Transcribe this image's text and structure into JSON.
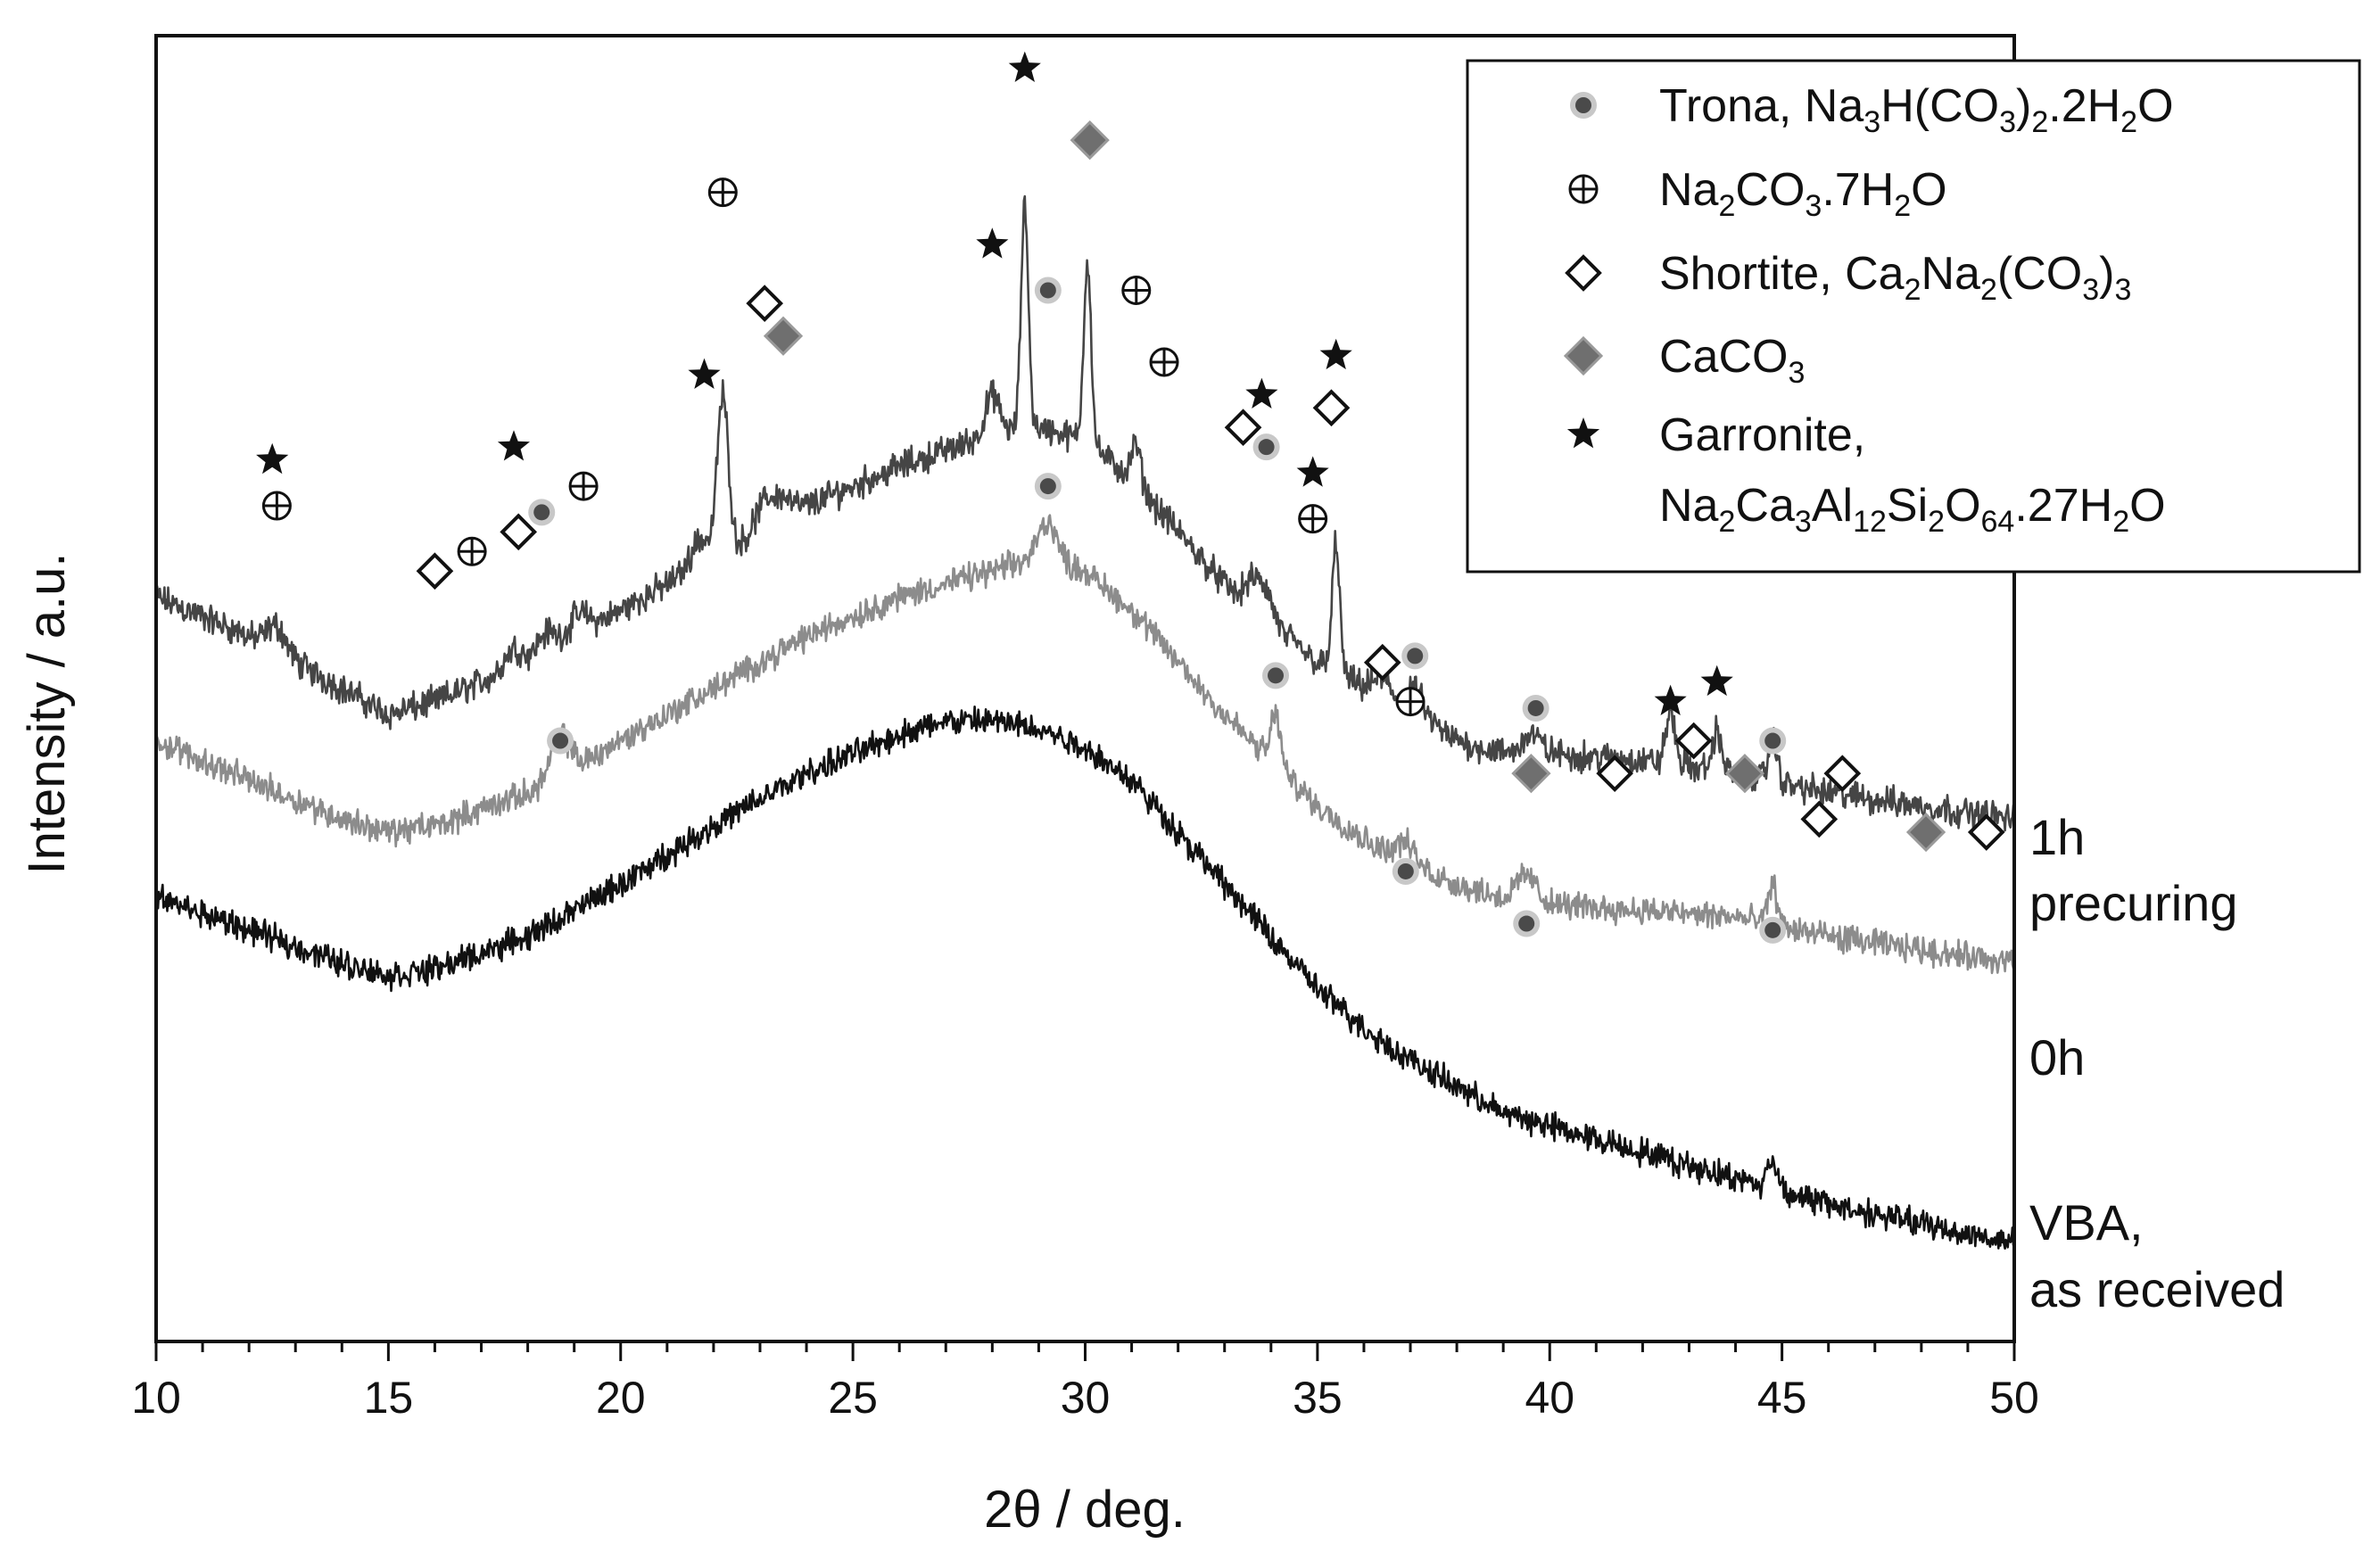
{
  "chart_data": {
    "type": "line",
    "title": "",
    "xlabel": "2θ / deg.",
    "ylabel": "Intensity / a.u.",
    "xlim": [
      10,
      50
    ],
    "ylim": [
      0,
      100
    ],
    "xticks": [
      10,
      15,
      20,
      25,
      30,
      35,
      40,
      45,
      50
    ],
    "xtick_labels": [
      "10",
      "15",
      "20",
      "25",
      "30",
      "35",
      "40",
      "45",
      "50"
    ],
    "yticks_shown": false,
    "legend_position": "top-right",
    "legend": [
      {
        "marker": "circle-gray",
        "label": "Trona, Na3H(CO3)2.2H2O",
        "parts": [
          [
            "Trona, Na",
            ""
          ],
          [
            "3",
            "sub"
          ],
          [
            "H(CO",
            ""
          ],
          [
            "3",
            "sub"
          ],
          [
            ")",
            ""
          ],
          [
            "2",
            "sub"
          ],
          [
            ".2H",
            ""
          ],
          [
            "2",
            "sub"
          ],
          [
            "O",
            ""
          ]
        ]
      },
      {
        "marker": "circle-plus",
        "label": "Na2CO3.7H2O",
        "parts": [
          [
            "Na",
            ""
          ],
          [
            "2",
            "sub"
          ],
          [
            "CO",
            ""
          ],
          [
            "3",
            "sub"
          ],
          [
            ".7H",
            ""
          ],
          [
            "2",
            "sub"
          ],
          [
            "O",
            ""
          ]
        ]
      },
      {
        "marker": "diamond-open",
        "label": "Shortite, Ca2Na2(CO3)3",
        "parts": [
          [
            "Shortite, Ca",
            ""
          ],
          [
            "2",
            "sub"
          ],
          [
            "Na",
            ""
          ],
          [
            "2",
            "sub"
          ],
          [
            "(CO",
            ""
          ],
          [
            "3",
            "sub"
          ],
          [
            ")",
            ""
          ],
          [
            "3",
            "sub"
          ]
        ]
      },
      {
        "marker": "diamond-gray",
        "label": "CaCO3",
        "parts": [
          [
            "CaCO",
            ""
          ],
          [
            "3",
            "sub"
          ]
        ]
      },
      {
        "marker": "star",
        "label": "Garronite,",
        "parts": [
          [
            "Garronite,",
            ""
          ]
        ]
      },
      {
        "marker": "none",
        "label": "Na2Ca3Al12Si2O64.27H2O",
        "parts": [
          [
            "Na",
            ""
          ],
          [
            "2",
            "sub"
          ],
          [
            "Ca",
            ""
          ],
          [
            "3",
            "sub"
          ],
          [
            "Al",
            ""
          ],
          [
            "12",
            "sub"
          ],
          [
            "Si",
            ""
          ],
          [
            "2",
            "sub"
          ],
          [
            "O",
            ""
          ],
          [
            "64",
            "sub"
          ],
          [
            ".27H",
            ""
          ],
          [
            "2",
            "sub"
          ],
          [
            "O",
            ""
          ]
        ]
      }
    ],
    "series": [
      {
        "name": "1h precuring",
        "label_lines": [
          "1h",
          "precuring"
        ],
        "color": "#454545",
        "baseline": [
          [
            10,
            57
          ],
          [
            12,
            54
          ],
          [
            14,
            50
          ],
          [
            15,
            48
          ],
          [
            16,
            49
          ],
          [
            18,
            52
          ],
          [
            20,
            56
          ],
          [
            22,
            60
          ],
          [
            24,
            64
          ],
          [
            26,
            67
          ],
          [
            28,
            69.5
          ],
          [
            29,
            70
          ],
          [
            30,
            69
          ],
          [
            31,
            66
          ],
          [
            32,
            62
          ],
          [
            33,
            58
          ],
          [
            34,
            55
          ],
          [
            35,
            52
          ],
          [
            36,
            50
          ],
          [
            37,
            48
          ],
          [
            38,
            46
          ],
          [
            39,
            45
          ],
          [
            40,
            45
          ],
          [
            42,
            44.5
          ],
          [
            44,
            43.5
          ],
          [
            46,
            42
          ],
          [
            48,
            41
          ],
          [
            50,
            40
          ]
        ],
        "peaks": [
          [
            12.6,
            2,
            0.2
          ],
          [
            17.7,
            1.5,
            0.2
          ],
          [
            18.4,
            1.5,
            0.2
          ],
          [
            19.1,
            1.5,
            0.2
          ],
          [
            21.7,
            2,
            0.2
          ],
          [
            22.2,
            12,
            0.12
          ],
          [
            23.1,
            2,
            0.2
          ],
          [
            23.5,
            1.5,
            0.2
          ],
          [
            28.0,
            3,
            0.15
          ],
          [
            28.7,
            17,
            0.08
          ],
          [
            30.05,
            14,
            0.08
          ],
          [
            31.1,
            3,
            0.1
          ],
          [
            33.6,
            2,
            0.15
          ],
          [
            33.9,
            2,
            0.15
          ],
          [
            35.4,
            10,
            0.08
          ],
          [
            36.4,
            1.5,
            0.2
          ],
          [
            37.1,
            2,
            0.2
          ],
          [
            39.6,
            1.5,
            0.2
          ],
          [
            42.6,
            4,
            0.1
          ],
          [
            43.6,
            3,
            0.1
          ],
          [
            44.8,
            3,
            0.1
          ]
        ],
        "noise": 1.1
      },
      {
        "name": "0h",
        "label_lines": [
          "0h"
        ],
        "color": "#8c8c8c",
        "baseline": [
          [
            10,
            46
          ],
          [
            12,
            43
          ],
          [
            14,
            40
          ],
          [
            15,
            39
          ],
          [
            16,
            39.5
          ],
          [
            18,
            42
          ],
          [
            20,
            46
          ],
          [
            22,
            50
          ],
          [
            24,
            54
          ],
          [
            26,
            57
          ],
          [
            28,
            59
          ],
          [
            29,
            60
          ],
          [
            30,
            59
          ],
          [
            31,
            56
          ],
          [
            32,
            52
          ],
          [
            33,
            48
          ],
          [
            34,
            44.5
          ],
          [
            35,
            41
          ],
          [
            36,
            38.5
          ],
          [
            37,
            36.5
          ],
          [
            38,
            35
          ],
          [
            39,
            34
          ],
          [
            40,
            33.5
          ],
          [
            42,
            33
          ],
          [
            44,
            32.5
          ],
          [
            46,
            31
          ],
          [
            48,
            30
          ],
          [
            50,
            29
          ]
        ],
        "peaks": [
          [
            18.7,
            3,
            0.2
          ],
          [
            29.2,
            3,
            0.2
          ],
          [
            34.1,
            4,
            0.1
          ],
          [
            36.9,
            1.5,
            0.2
          ],
          [
            39.5,
            2,
            0.2
          ],
          [
            44.8,
            3,
            0.1
          ]
        ],
        "noise": 1.0
      },
      {
        "name": "VBA, as received",
        "label_lines": [
          "VBA,",
          "as received"
        ],
        "color": "#111111",
        "baseline": [
          [
            10,
            34
          ],
          [
            12,
            31.5
          ],
          [
            14,
            29
          ],
          [
            15,
            28
          ],
          [
            16,
            28.5
          ],
          [
            18,
            31
          ],
          [
            20,
            35
          ],
          [
            22,
            39.5
          ],
          [
            24,
            43.5
          ],
          [
            26,
            46.5
          ],
          [
            27,
            47.5
          ],
          [
            28,
            47.5
          ],
          [
            29,
            47
          ],
          [
            30,
            45.5
          ],
          [
            31,
            43
          ],
          [
            32,
            39
          ],
          [
            33,
            35
          ],
          [
            34,
            31
          ],
          [
            35,
            27
          ],
          [
            36,
            24
          ],
          [
            37,
            21.5
          ],
          [
            38,
            19.5
          ],
          [
            39,
            17.5
          ],
          [
            40,
            16.5
          ],
          [
            42,
            14.5
          ],
          [
            44,
            12.5
          ],
          [
            46,
            10.5
          ],
          [
            48,
            9
          ],
          [
            50,
            7.5
          ]
        ],
        "peaks": [
          [
            44.8,
            2,
            0.12
          ]
        ],
        "noise": 1.0
      }
    ],
    "annotations": [
      {
        "series": "1h precuring",
        "marker": "star",
        "x": 12.5,
        "y": 67.5
      },
      {
        "series": "1h precuring",
        "marker": "circle-plus",
        "x": 12.6,
        "y": 64
      },
      {
        "series": "1h precuring",
        "marker": "diamond-open",
        "x": 16.0,
        "y": 59
      },
      {
        "series": "1h precuring",
        "marker": "circle-plus",
        "x": 16.8,
        "y": 60.5
      },
      {
        "series": "1h precuring",
        "marker": "star",
        "x": 17.7,
        "y": 68.5
      },
      {
        "series": "1h precuring",
        "marker": "diamond-open",
        "x": 17.8,
        "y": 62
      },
      {
        "series": "1h precuring",
        "marker": "circle-gray",
        "x": 18.3,
        "y": 63.5
      },
      {
        "series": "1h precuring",
        "marker": "circle-plus",
        "x": 19.2,
        "y": 65.5
      },
      {
        "series": "1h precuring",
        "marker": "star",
        "x": 21.8,
        "y": 74
      },
      {
        "series": "1h precuring",
        "marker": "circle-plus",
        "x": 22.2,
        "y": 88
      },
      {
        "series": "1h precuring",
        "marker": "diamond-open",
        "x": 23.1,
        "y": 79.5
      },
      {
        "series": "1h precuring",
        "marker": "diamond-gray",
        "x": 23.5,
        "y": 77
      },
      {
        "series": "1h precuring",
        "marker": "star",
        "x": 28.0,
        "y": 84
      },
      {
        "series": "1h precuring",
        "marker": "star",
        "x": 28.7,
        "y": 97.5
      },
      {
        "series": "1h precuring",
        "marker": "circle-gray",
        "x": 29.2,
        "y": 80.5
      },
      {
        "series": "1h precuring",
        "marker": "diamond-gray",
        "x": 30.1,
        "y": 92
      },
      {
        "series": "1h precuring",
        "marker": "circle-plus",
        "x": 31.1,
        "y": 80.5
      },
      {
        "series": "1h precuring",
        "marker": "circle-plus",
        "x": 31.7,
        "y": 75
      },
      {
        "series": "1h precuring",
        "marker": "diamond-open",
        "x": 33.4,
        "y": 70
      },
      {
        "series": "1h precuring",
        "marker": "circle-gray",
        "x": 33.9,
        "y": 68.5
      },
      {
        "series": "1h precuring",
        "marker": "star",
        "x": 33.8,
        "y": 72.5
      },
      {
        "series": "1h precuring",
        "marker": "star",
        "x": 34.9,
        "y": 66.5
      },
      {
        "series": "1h precuring",
        "marker": "circle-plus",
        "x": 34.9,
        "y": 63
      },
      {
        "series": "1h precuring",
        "marker": "diamond-open",
        "x": 35.3,
        "y": 71.5
      },
      {
        "series": "1h precuring",
        "marker": "star",
        "x": 35.4,
        "y": 75.5
      },
      {
        "series": "1h precuring",
        "marker": "diamond-open",
        "x": 36.4,
        "y": 52
      },
      {
        "series": "1h precuring",
        "marker": "circle-gray",
        "x": 37.1,
        "y": 52.5
      },
      {
        "series": "1h precuring",
        "marker": "circle-plus",
        "x": 37.0,
        "y": 49
      },
      {
        "series": "1h precuring",
        "marker": "circle-gray",
        "x": 39.7,
        "y": 48.5
      },
      {
        "series": "1h precuring",
        "marker": "diamond-gray",
        "x": 39.6,
        "y": 43.5
      },
      {
        "series": "1h precuring",
        "marker": "diamond-open",
        "x": 41.4,
        "y": 43.5
      },
      {
        "series": "1h precuring",
        "marker": "star",
        "x": 42.6,
        "y": 49
      },
      {
        "series": "1h precuring",
        "marker": "diamond-open",
        "x": 43.1,
        "y": 46
      },
      {
        "series": "1h precuring",
        "marker": "star",
        "x": 43.6,
        "y": 50.5
      },
      {
        "series": "1h precuring",
        "marker": "diamond-gray",
        "x": 44.2,
        "y": 43.5
      },
      {
        "series": "1h precuring",
        "marker": "circle-gray",
        "x": 44.8,
        "y": 46
      },
      {
        "series": "1h precuring",
        "marker": "diamond-open",
        "x": 45.8,
        "y": 40
      },
      {
        "series": "1h precuring",
        "marker": "diamond-open",
        "x": 46.3,
        "y": 43.5
      },
      {
        "series": "1h precuring",
        "marker": "diamond-gray",
        "x": 48.1,
        "y": 39
      },
      {
        "series": "1h precuring",
        "marker": "diamond-open",
        "x": 49.4,
        "y": 39
      },
      {
        "series": "0h",
        "marker": "circle-gray",
        "x": 18.7,
        "y": 46
      },
      {
        "series": "0h",
        "marker": "circle-gray",
        "x": 29.2,
        "y": 65.5
      },
      {
        "series": "0h",
        "marker": "circle-gray",
        "x": 34.1,
        "y": 51
      },
      {
        "series": "0h",
        "marker": "circle-gray",
        "x": 36.9,
        "y": 36
      },
      {
        "series": "0h",
        "marker": "circle-gray",
        "x": 39.5,
        "y": 32
      },
      {
        "series": "0h",
        "marker": "circle-gray",
        "x": 44.8,
        "y": 31.5
      }
    ]
  }
}
